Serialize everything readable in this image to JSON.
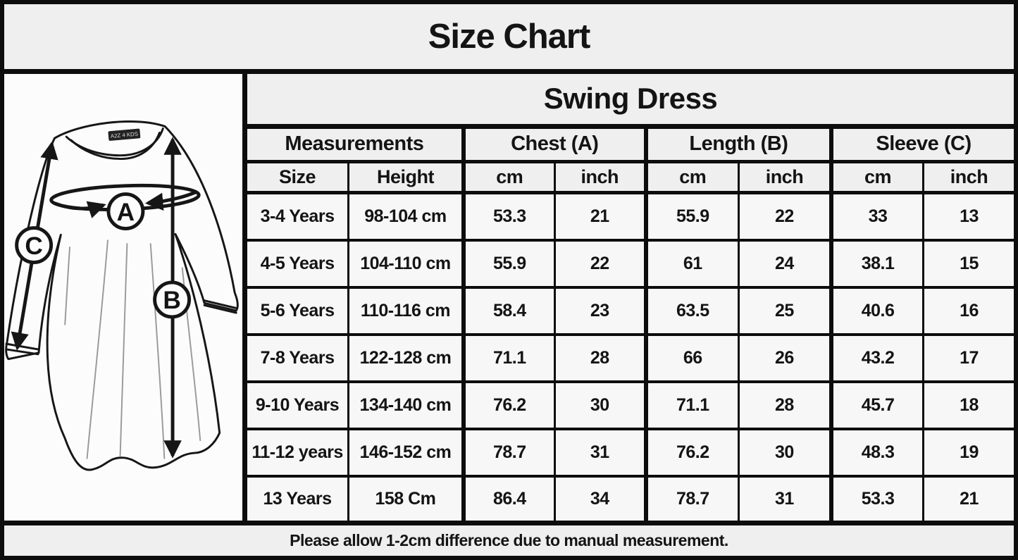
{
  "title": "Size Chart",
  "product": "Swing Dress",
  "table": {
    "group_headers": [
      {
        "key": "measurements",
        "label": "Measurements",
        "span": 2
      },
      {
        "key": "chest",
        "label": "Chest (A)",
        "span": 2
      },
      {
        "key": "length",
        "label": "Length (B)",
        "span": 2
      },
      {
        "key": "sleeve",
        "label": "Sleeve (C)",
        "span": 2
      }
    ],
    "column_keys": [
      "size",
      "height",
      "chest-cm",
      "chest-inch",
      "length-cm",
      "length-inch",
      "sleeve-cm",
      "sleeve-inch"
    ],
    "sub_headers": [
      "Size",
      "Height",
      "cm",
      "inch",
      "cm",
      "inch",
      "cm",
      "inch"
    ],
    "rows": [
      [
        "3-4 Years",
        "98-104 cm",
        "53.3",
        "21",
        "55.9",
        "22",
        "33",
        "13"
      ],
      [
        "4-5 Years",
        "104-110 cm",
        "55.9",
        "22",
        "61",
        "24",
        "38.1",
        "15"
      ],
      [
        "5-6 Years",
        "110-116 cm",
        "58.4",
        "23",
        "63.5",
        "25",
        "40.6",
        "16"
      ],
      [
        "7-8 Years",
        "122-128 cm",
        "71.1",
        "28",
        "66",
        "26",
        "43.2",
        "17"
      ],
      [
        "9-10 Years",
        "134-140 cm",
        "76.2",
        "30",
        "71.1",
        "28",
        "45.7",
        "18"
      ],
      [
        "11-12 years",
        "146-152 cm",
        "78.7",
        "31",
        "76.2",
        "30",
        "48.3",
        "19"
      ],
      [
        "13 Years",
        "158 Cm",
        "86.4",
        "34",
        "78.7",
        "31",
        "53.3",
        "21"
      ]
    ]
  },
  "dress": {
    "measure_a": "A",
    "measure_b": "B",
    "measure_c": "C",
    "tag_text": "A2Z 4 KDS"
  },
  "footer_note": "Please allow 1-2cm difference due to manual measurement.",
  "colors": {
    "frame_border": "#0d0d0d",
    "header_bg": "#efefef",
    "cell_bg": "#f7f7f7",
    "panel_bg": "#fcfcfc",
    "ink": "#161616"
  }
}
